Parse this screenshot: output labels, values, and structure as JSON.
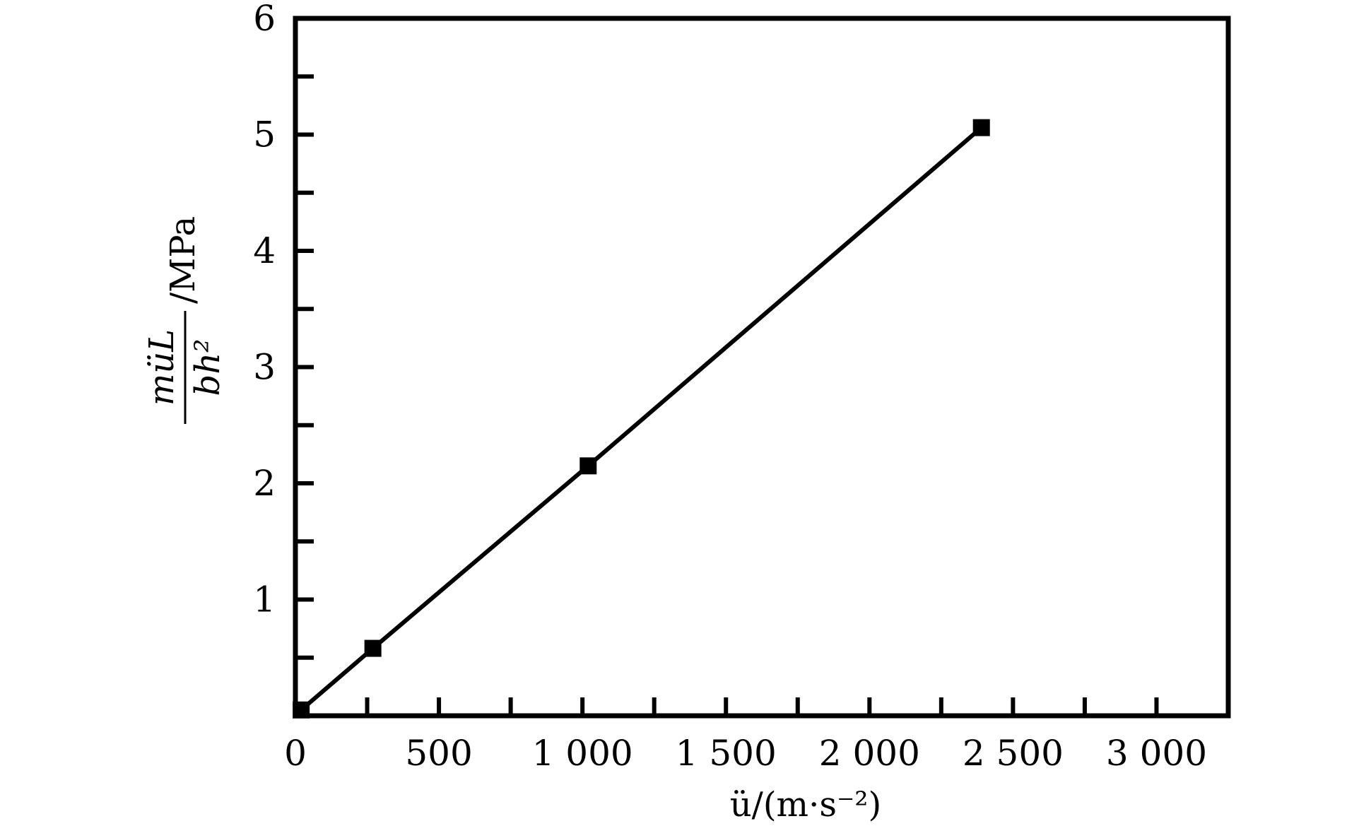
{
  "chart_data": {
    "type": "line",
    "xlabel": "ü/(m·s⁻²)",
    "ylabel": "müL/bh² /MPa",
    "ylabel_parts": {
      "numerator": "müL",
      "denominator": "bh²",
      "unit": "/MPa"
    },
    "xlim": [
      0,
      3250
    ],
    "ylim": [
      0,
      6
    ],
    "x_ticks": [
      0,
      500,
      1000,
      1500,
      2000,
      2500,
      3000
    ],
    "x_tick_labels": [
      "0",
      "500",
      "1 000",
      "1 500",
      "2 000",
      "2 500",
      "3 000"
    ],
    "x_minor_ticks": [
      250,
      750,
      1250,
      1750,
      2250,
      2750
    ],
    "y_ticks": [
      1,
      2,
      3,
      4,
      5,
      6
    ],
    "y_tick_labels": [
      "1",
      "2",
      "3",
      "4",
      "5",
      "6"
    ],
    "y_minor_ticks": [
      0.5,
      1.5,
      2.5,
      3.5,
      4.5,
      5.5
    ],
    "grid": false,
    "legend": false,
    "series": [
      {
        "x": [
          20,
          270,
          1020,
          2390
        ],
        "y": [
          0.05,
          0.58,
          2.15,
          5.06
        ],
        "marker": "square",
        "color": "#000000"
      }
    ]
  }
}
